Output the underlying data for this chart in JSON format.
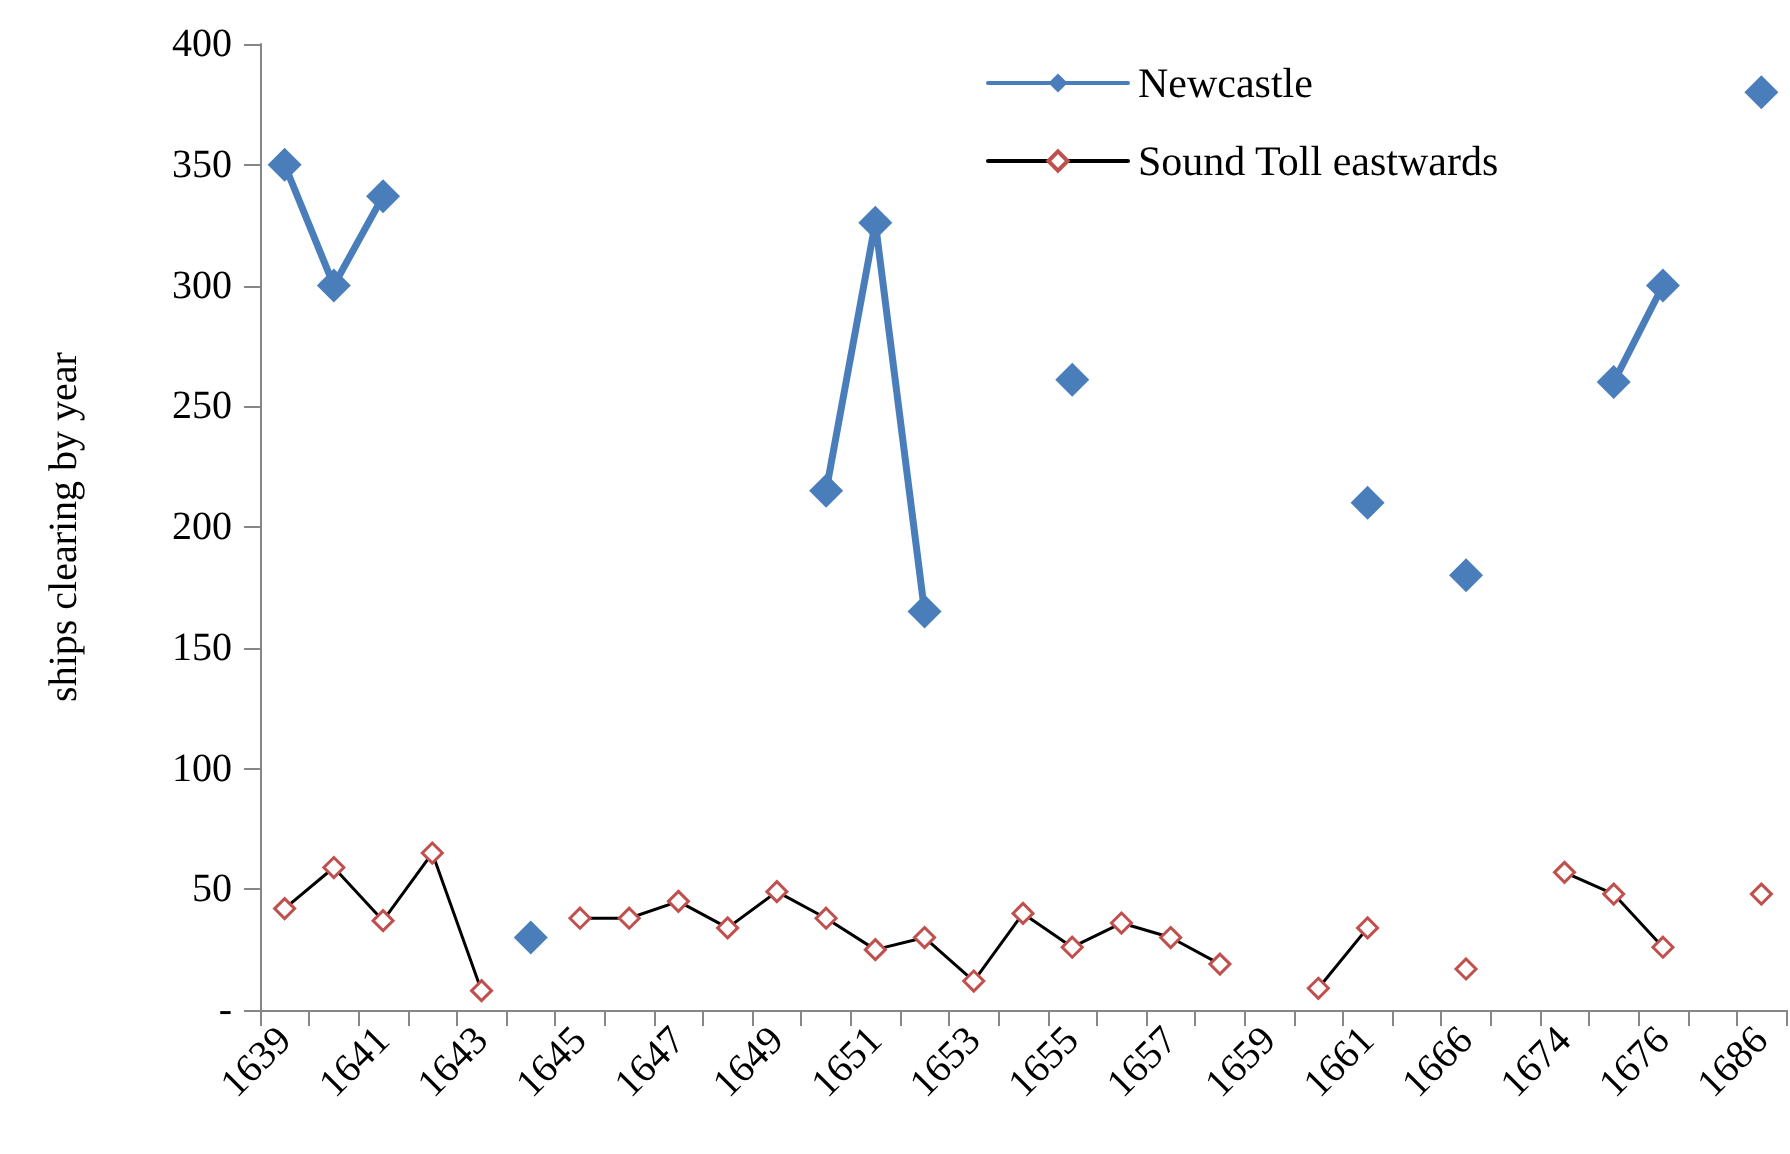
{
  "chart_data": {
    "type": "line",
    "ylabel": "ships clearing by year",
    "categories": [
      "1639",
      null,
      "1641",
      null,
      "1643",
      null,
      "1645",
      null,
      "1647",
      null,
      "1649",
      null,
      "1651",
      null,
      "1653",
      null,
      "1655",
      null,
      "1657",
      null,
      "1659",
      null,
      "1661",
      null,
      "1666",
      null,
      "1674",
      null,
      "1676",
      null,
      "1686"
    ],
    "series": [
      {
        "name": "Newcastle",
        "color": "#4a7ebb",
        "values": [
          350,
          300,
          337,
          null,
          null,
          30,
          null,
          null,
          null,
          null,
          null,
          215,
          326,
          165,
          null,
          null,
          261,
          null,
          null,
          null,
          null,
          null,
          210,
          null,
          180,
          null,
          null,
          260,
          300,
          null,
          380
        ]
      },
      {
        "name": "Sound Toll eastwards",
        "color": "#c0504d",
        "values": [
          42,
          59,
          37,
          65,
          8,
          null,
          38,
          38,
          45,
          34,
          49,
          38,
          25,
          30,
          12,
          40,
          26,
          36,
          30,
          19,
          null,
          9,
          34,
          null,
          17,
          null,
          57,
          48,
          26,
          null,
          48
        ]
      }
    ],
    "ylim": [
      0,
      400
    ],
    "yticks": [
      {
        "value": 0,
        "label": "-"
      },
      50,
      100,
      150,
      200,
      250,
      300,
      350,
      400
    ],
    "grid": false,
    "legend": "top right",
    "marker": "diamond",
    "line_style": "solid"
  }
}
